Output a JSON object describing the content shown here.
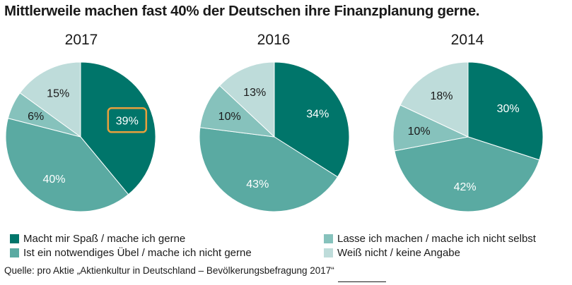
{
  "title": "Mittlerweile machen fast 40% der Deutschen ihre Finanzplanung gerne.",
  "source": "Quelle: pro Aktie „Aktienkultur in Deutschland – Bevölkerungsbefragung 2017“",
  "chart_data": [
    {
      "type": "pie",
      "title": "2017",
      "categories": [
        "Macht mir Spaß / mache ich gerne",
        "Ist ein notwendiges Übel / mache ich nicht gerne",
        "Lasse ich machen / mache ich nicht selbst",
        "Weiß nicht / keine Angabe"
      ],
      "values": [
        39,
        40,
        6,
        15
      ],
      "labels": [
        "39%",
        "40%",
        "6%",
        "15%"
      ],
      "highlight": "39%"
    },
    {
      "type": "pie",
      "title": "2016",
      "categories": [
        "Macht mir Spaß / mache ich gerne",
        "Ist ein notwendiges Übel / mache ich nicht gerne",
        "Lasse ich machen / mache ich nicht selbst",
        "Weiß nicht / keine Angabe"
      ],
      "values": [
        34,
        43,
        10,
        13
      ],
      "labels": [
        "34%",
        "43%",
        "10%",
        "13%"
      ]
    },
    {
      "type": "pie",
      "title": "2014",
      "categories": [
        "Macht mir Spaß / mache ich gerne",
        "Ist ein notwendiges Übel / mache ich nicht gerne",
        "Lasse ich machen / mache ich nicht selbst",
        "Weiß nicht / keine Angabe"
      ],
      "values": [
        30,
        42,
        10,
        18
      ],
      "labels": [
        "30%",
        "42%",
        "10%",
        "18%"
      ]
    }
  ],
  "legend": [
    {
      "label": "Macht mir Spaß / mache ich gerne",
      "color": "#00756a"
    },
    {
      "label": "Lasse ich machen / mache ich nicht selbst",
      "color": "#86c2bc"
    },
    {
      "label": "Ist ein notwendiges Übel / mache ich nicht gerne",
      "color": "#5aaaa2"
    },
    {
      "label": "Weiß nicht / keine Angabe",
      "color": "#bedcda"
    }
  ],
  "colors": [
    "#00756a",
    "#5aaaa2",
    "#86c2bc",
    "#bedcda"
  ],
  "highlight_color": "#e8a03c"
}
